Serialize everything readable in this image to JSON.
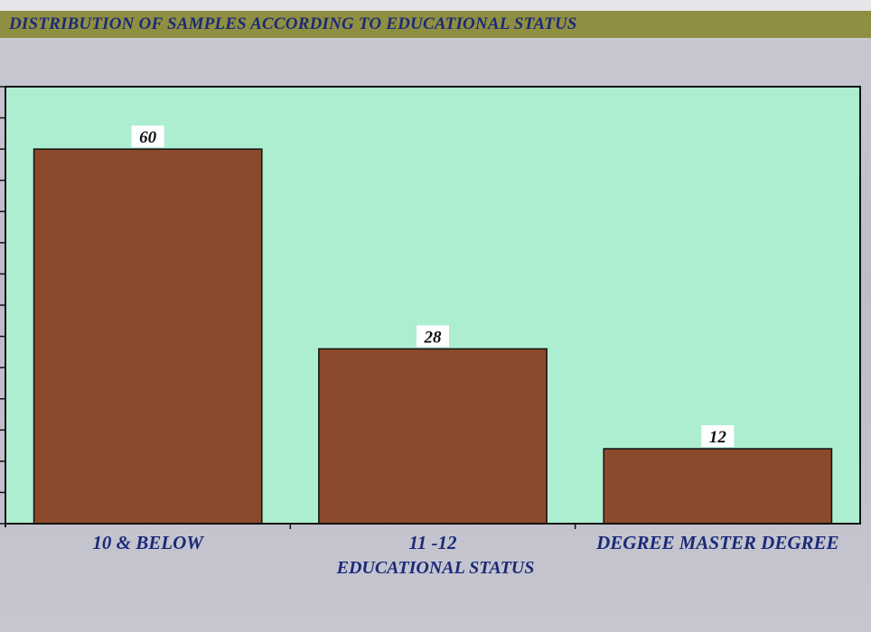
{
  "title": "DISTRIBUTION OF SAMPLES ACCORDING TO EDUCATIONAL STATUS",
  "chart_data": {
    "type": "bar",
    "title": "DISTRIBUTION OF SAMPLES ACCORDING TO EDUCATIONAL STATUS",
    "xlabel": "EDUCATIONAL STATUS",
    "ylabel": "",
    "categories": [
      "10 & BELOW",
      "11 -12",
      "DEGREE MASTER DEGREE"
    ],
    "values": [
      60,
      28,
      12
    ],
    "data_labels": [
      "60",
      "28",
      "12"
    ],
    "ylim": [
      0,
      70
    ],
    "y_tick_step": 5,
    "grid": false,
    "legend": "none",
    "colors": {
      "bar": "#8b4a2b",
      "plot_background": "#aeeed0",
      "label_color": "#1b2a78",
      "title_band": "#8f8f42"
    }
  }
}
